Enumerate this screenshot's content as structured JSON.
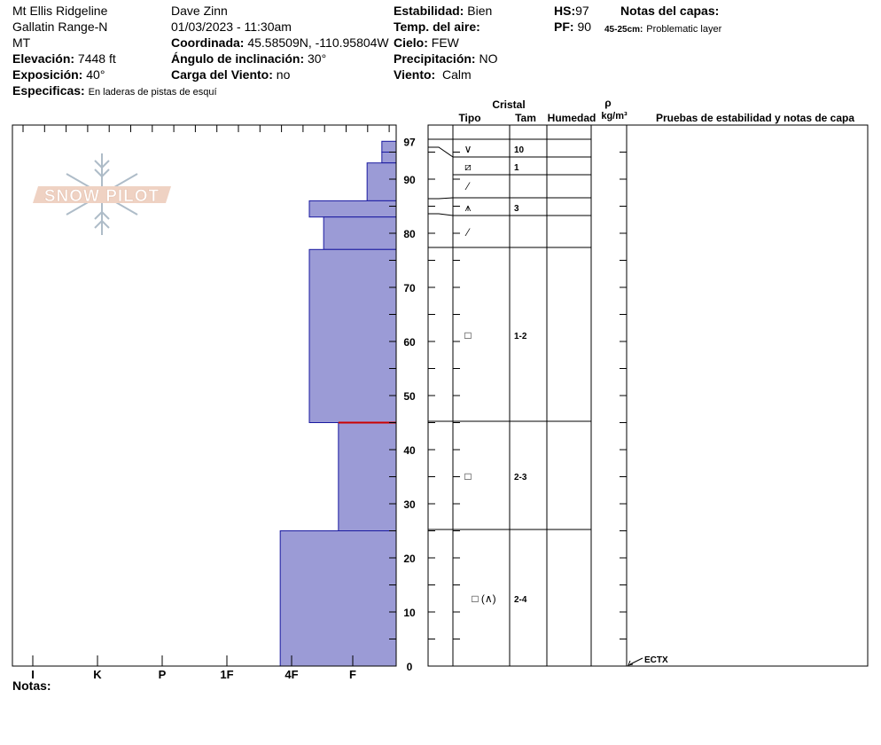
{
  "header": {
    "location": "Mt Ellis Ridgeline",
    "range": "Gallatin Range-N",
    "state": "MT",
    "elevation_label": "Elevación:",
    "elevation_value": "7448 ft",
    "aspect_label": "Exposición:",
    "aspect_value": "40°",
    "specifics_label": "Especificas:",
    "specifics_value": "En laderas de pistas de esquí",
    "observer": "Dave Zinn",
    "datetime": "01/03/2023 - 11:30am",
    "coord_label": "Coordinada:",
    "coord_value": "45.58509N, -110.95804W",
    "incline_label": "Ángulo de inclinación:",
    "incline_value": "30°",
    "wind_load_label": "Carga del Viento:",
    "wind_load_value": "no",
    "stability_label": "Estabilidad:",
    "stability_value": "Bien",
    "air_temp_label": "Temp. del aire:",
    "sky_label": "Cielo:",
    "sky_value": "FEW",
    "precip_label": "Precipitación:",
    "precip_value": "NO",
    "wind_label": "Viento:",
    "wind_value": "Calm",
    "hs_label": "HS:",
    "hs_value": "97",
    "pf_label": "PF:",
    "pf_value": "90",
    "layer_notes_title": "Notas del capas:",
    "layer_note_range": "45-25cm:",
    "layer_note_text": "Problematic layer"
  },
  "logo_text": "SNOW PILOT",
  "notes_label": "Notas:",
  "columns": {
    "crystal": "Cristal",
    "type": "Tipo",
    "size": "Tam",
    "moisture": "Humedad",
    "density_symbol": "ρ",
    "density_unit": "kg/m³",
    "tests": "Pruebas de estabilidad y notas de capa"
  },
  "test_result": "ECTX",
  "chart_data": {
    "type": "bar",
    "orientation": "horizontal",
    "x_categories": [
      "I",
      "K",
      "P",
      "1F",
      "4F",
      "F"
    ],
    "y_axis": {
      "min": 0,
      "max": 97,
      "ticks": [
        0,
        10,
        20,
        30,
        40,
        50,
        60,
        70,
        80,
        90,
        97
      ]
    },
    "hardness_layers": [
      {
        "bottom": 95,
        "top": 97,
        "hardness_index": 0.33
      },
      {
        "bottom": 93,
        "top": 95,
        "hardness_index": 0.33
      },
      {
        "bottom": 86,
        "top": 93,
        "hardness_index": 0.67
      },
      {
        "bottom": 83,
        "top": 86,
        "hardness_index": 2.0
      },
      {
        "bottom": 77,
        "top": 83,
        "hardness_index": 1.67
      },
      {
        "bottom": 45,
        "top": 77,
        "hardness_index": 2.0
      },
      {
        "bottom": 25,
        "top": 45,
        "hardness_index": 1.33
      },
      {
        "bottom": 0,
        "top": 25,
        "hardness_index": 2.67
      }
    ],
    "weak_layer_at": 45,
    "colors": {
      "fill": "#9b9bd6",
      "edge": "#1a1aa0",
      "weak": "#cc0000"
    }
  },
  "layers": [
    {
      "depth": 94,
      "grain": "precipitation-particles",
      "size": "10"
    },
    {
      "depth": 91,
      "grain": "decomposing-fragments",
      "size": "1"
    },
    {
      "depth": 88,
      "grain": "line-marker",
      "size": ""
    },
    {
      "depth": 85,
      "grain": "surface-hoar-faceted",
      "size": "3"
    },
    {
      "depth": 80,
      "grain": "line-marker",
      "size": ""
    },
    {
      "depth": 61,
      "grain": "faceted",
      "size": "1-2"
    },
    {
      "depth": 35,
      "grain": "faceted",
      "size": "2-3"
    },
    {
      "depth": 12.5,
      "grain": "faceted-depth-hoar",
      "size": "2-4"
    }
  ],
  "grain_symbols": {
    "precipitation-particles": "∨",
    "decomposing-fragments": "⧄",
    "line-marker": "⁄",
    "surface-hoar-faceted": "⩚",
    "faceted": "□",
    "faceted-depth-hoar": "□ (∧)"
  }
}
